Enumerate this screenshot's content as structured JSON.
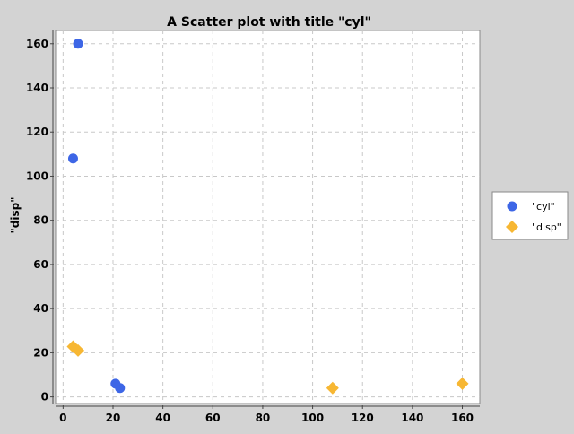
{
  "chart_data": {
    "type": "scatter",
    "title": "A Scatter plot with title \"cyl\"",
    "xlabel": "",
    "ylabel": "\"disp\"",
    "xlim": [
      -3,
      167
    ],
    "ylim": [
      -3,
      166
    ],
    "x_ticks": [
      0,
      20,
      40,
      60,
      80,
      100,
      120,
      140,
      160
    ],
    "y_ticks": [
      0,
      20,
      40,
      60,
      80,
      100,
      120,
      140,
      160
    ],
    "grid": true,
    "legend_position": "right",
    "series": [
      {
        "name": "\"cyl\"",
        "marker": "circle",
        "color": "#3d66e6",
        "points": [
          [
            6,
            160
          ],
          [
            4,
            108
          ],
          [
            21,
            6
          ],
          [
            22.8,
            4
          ]
        ]
      },
      {
        "name": "\"disp\"",
        "marker": "diamond",
        "color": "#f7b733",
        "points": [
          [
            4,
            22.8
          ],
          [
            6,
            21
          ],
          [
            108,
            4
          ],
          [
            160,
            6
          ]
        ]
      }
    ]
  }
}
